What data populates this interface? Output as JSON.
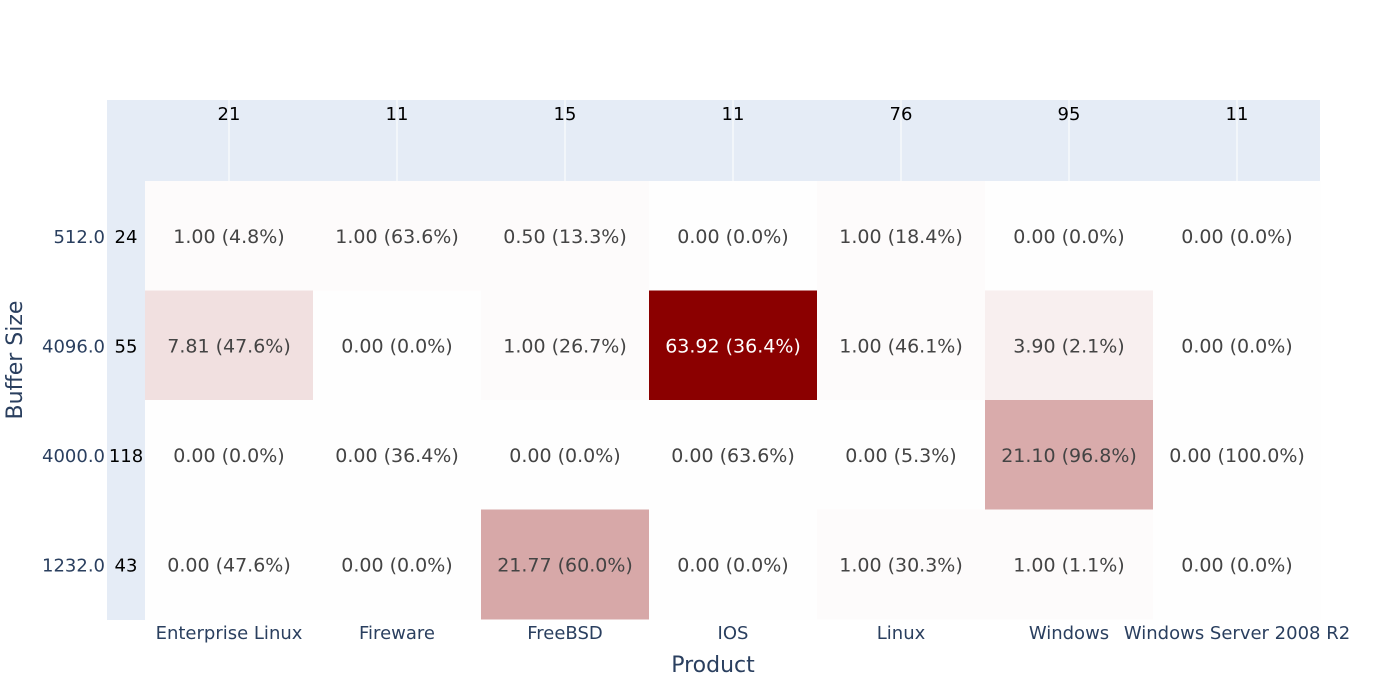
{
  "chart_data": {
    "type": "heatmap",
    "xlabel": "Product",
    "ylabel": "Buffer Size",
    "x_categories": [
      "Enterprise Linux",
      "Fireware",
      "FreeBSD",
      "IOS",
      "Linux",
      "Windows",
      "Windows Server 2008 R2"
    ],
    "y_categories": [
      "512.0",
      "4096.0",
      "4000.0",
      "1232.0"
    ],
    "column_totals": [
      21,
      11,
      15,
      11,
      76,
      95,
      11
    ],
    "row_totals": [
      24,
      55,
      118,
      43
    ],
    "values": [
      [
        1.0,
        1.0,
        0.5,
        0.0,
        1.0,
        0.0,
        0.0
      ],
      [
        7.81,
        0.0,
        1.0,
        63.92,
        1.0,
        3.9,
        0.0
      ],
      [
        0.0,
        0.0,
        0.0,
        0.0,
        0.0,
        21.1,
        0.0
      ],
      [
        0.0,
        0.0,
        21.77,
        0.0,
        1.0,
        1.0,
        0.0
      ]
    ],
    "percentages": [
      [
        "4.8%",
        "63.6%",
        "13.3%",
        "0.0%",
        "18.4%",
        "0.0%",
        "0.0%"
      ],
      [
        "47.6%",
        "0.0%",
        "26.7%",
        "36.4%",
        "46.1%",
        "2.1%",
        "0.0%"
      ],
      [
        "0.0%",
        "36.4%",
        "0.0%",
        "63.6%",
        "5.3%",
        "96.8%",
        "100.0%"
      ],
      [
        "47.6%",
        "0.0%",
        "60.0%",
        "0.0%",
        "30.3%",
        "1.1%",
        "0.0%"
      ]
    ],
    "cell_labels": [
      [
        "1.00 (4.8%)",
        "1.00 (63.6%)",
        "0.50 (13.3%)",
        "0.00 (0.0%)",
        "1.00 (18.4%)",
        "0.00 (0.0%)",
        "0.00 (0.0%)"
      ],
      [
        "7.81 (47.6%)",
        "0.00 (0.0%)",
        "1.00 (26.7%)",
        "63.92 (36.4%)",
        "1.00 (46.1%)",
        "3.90 (2.1%)",
        "0.00 (0.0%)"
      ],
      [
        "0.00 (0.0%)",
        "0.00 (36.4%)",
        "0.00 (0.0%)",
        "0.00 (63.6%)",
        "0.00 (5.3%)",
        "21.10 (96.8%)",
        "0.00 (100.0%)"
      ],
      [
        "0.00 (47.6%)",
        "0.00 (0.0%)",
        "21.77 (60.0%)",
        "0.00 (0.0%)",
        "1.00 (30.3%)",
        "1.00 (1.1%)",
        "0.00 (0.0%)"
      ]
    ],
    "colorscale": [
      "#ffffff",
      "#8b0000"
    ],
    "zmin": 0,
    "zmax": 63.92,
    "margin_bar_color": "#e5ecf6"
  }
}
